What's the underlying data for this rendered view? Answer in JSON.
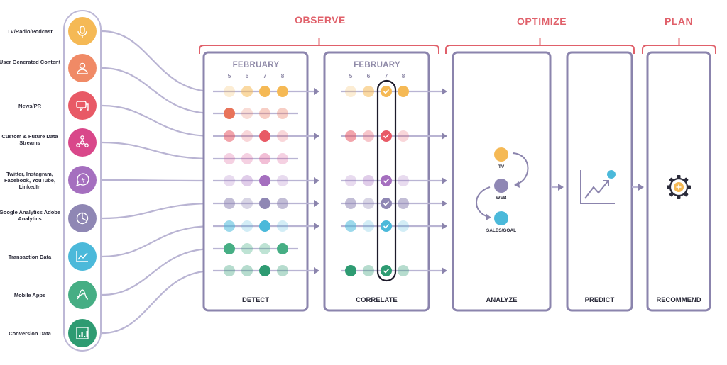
{
  "sources": [
    {
      "label": "TV/Radio/Podcast",
      "icon": "microphone-icon",
      "color": "#f5b955"
    },
    {
      "label": "User Generated Content",
      "icon": "user-icon",
      "color": "#f08a66"
    },
    {
      "label": "News/PR",
      "icon": "chat-icon",
      "color": "#e85a66"
    },
    {
      "label": "Custom & Future Data Streams",
      "icon": "network-icon",
      "color": "#d9478a"
    },
    {
      "label": "Twitter, Instagram, Facebook, YouTube, LinkedIn",
      "icon": "hashtag-icon",
      "color": "#a56fbf"
    },
    {
      "label": "Google Analytics Adobe Analytics",
      "icon": "pie-chart-icon",
      "color": "#8f87b4"
    },
    {
      "label": "Transaction Data",
      "icon": "trend-icon",
      "color": "#4bb9da"
    },
    {
      "label": "Mobile Apps",
      "icon": "wave-icon",
      "color": "#46ae84"
    },
    {
      "label": "Conversion Data",
      "icon": "bar-chart-icon",
      "color": "#2e9b72"
    }
  ],
  "phases": {
    "observe": "OBSERVE",
    "optimize": "OPTIMIZE",
    "plan": "PLAN"
  },
  "stages": {
    "detect": "DETECT",
    "correlate": "CORRELATE",
    "analyze": "ANALYZE",
    "predict": "PREDICT",
    "recommend": "RECOMMEND"
  },
  "month": "FEBRUARY",
  "days": [
    "5",
    "6",
    "7",
    "8"
  ],
  "analyze_nodes": {
    "tv": "TV",
    "web": "WEB",
    "sales": "SALES/GOAL"
  },
  "row_colors": [
    "#f5b955",
    "#e8735a",
    "#e85a66",
    "#d9478a",
    "#a56fbf",
    "#8f87b4",
    "#4bb9da",
    "#46ae84",
    "#2e9b72"
  ]
}
